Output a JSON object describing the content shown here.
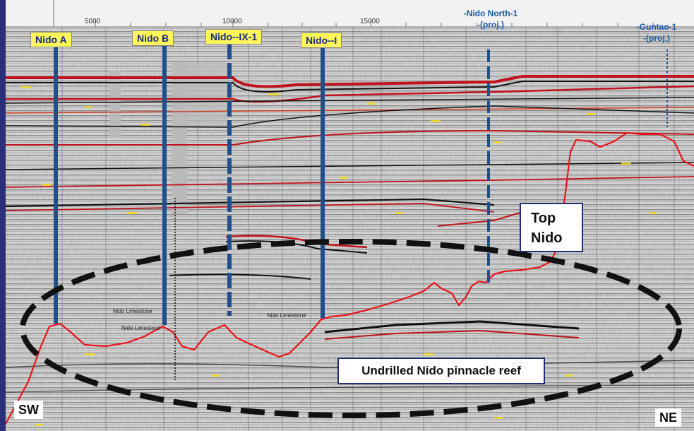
{
  "axis": {
    "ticks": [
      "5000",
      "10000",
      "15000"
    ]
  },
  "wells": [
    {
      "label": "Nido A"
    },
    {
      "label": "Nido B"
    },
    {
      "label": "Nido--IX-1"
    },
    {
      "label": "Nido--I"
    }
  ],
  "projected_wells": [
    {
      "name": "-Nido North-1",
      "note": "-(proj.)"
    },
    {
      "name": "-Guntao-1",
      "note": "-(proj.)"
    }
  ],
  "horizon_tags": [
    "Nido Limestone",
    "Nido Limestone",
    "Nido Limestone"
  ],
  "callouts": {
    "top_nido": "Top\nNido",
    "reef": "Undrilled Nido pinnacle reef"
  },
  "directions": {
    "left": "SW",
    "right": "NE"
  },
  "colors": {
    "well_line": "#1f4f8c",
    "horizon": "#e8141b",
    "ellipse": "#111111"
  }
}
